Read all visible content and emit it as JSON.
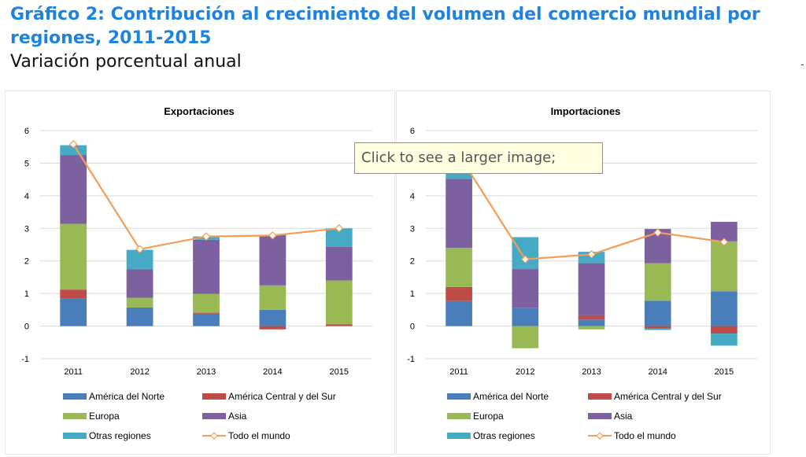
{
  "header": {
    "title": "Gráfico 2: Contribución al crecimiento del volumen del comercio mundial por regiones, 2011-2015",
    "subtitle": "Variación porcentual anual"
  },
  "tooltip": {
    "text": "Click to see a larger image;"
  },
  "colors": {
    "America del Norte": "#4a7ebb",
    "America Central y del Sur": "#be4b48",
    "Europa": "#98b954",
    "Asia": "#7d60a0",
    "Otras regiones": "#46aac5",
    "Todo el mundo": "#f59d56",
    "grid": "#d9d9d9"
  },
  "chart_data": [
    {
      "type": "bar",
      "title": "Exportaciones",
      "categories": [
        "2011",
        "2012",
        "2013",
        "2014",
        "2015"
      ],
      "ylim": [
        -1,
        6
      ],
      "yticks": [
        "-1",
        "0",
        "1",
        "2",
        "3",
        "4",
        "5",
        "6"
      ],
      "grid": true,
      "legend_position": "bottom",
      "series": [
        {
          "name": "América del Norte",
          "values": [
            0.85,
            0.57,
            0.38,
            0.5,
            0.0
          ]
        },
        {
          "name": "América Central y del Sur",
          "values": [
            0.27,
            0.0,
            0.03,
            -0.1,
            0.05
          ]
        },
        {
          "name": "Europa",
          "values": [
            2.02,
            0.3,
            0.58,
            0.75,
            1.35
          ]
        },
        {
          "name": "Asia",
          "values": [
            2.11,
            0.87,
            1.66,
            1.55,
            1.03
          ]
        },
        {
          "name": "Otras regiones",
          "values": [
            0.3,
            0.6,
            0.1,
            0.0,
            0.57
          ]
        },
        {
          "name": "Todo el mundo",
          "type": "line",
          "values": [
            5.58,
            2.36,
            2.75,
            2.78,
            3.0
          ]
        }
      ]
    },
    {
      "type": "bar",
      "title": "Importaciones",
      "categories": [
        "2011",
        "2012",
        "2013",
        "2014",
        "2015"
      ],
      "ylim": [
        -1,
        6
      ],
      "yticks": [
        "-1",
        "0",
        "1",
        "2",
        "3",
        "4",
        "5",
        "6"
      ],
      "grid": true,
      "legend_position": "bottom",
      "series": [
        {
          "name": "América del Norte",
          "values": [
            0.77,
            0.55,
            0.2,
            0.78,
            1.07
          ]
        },
        {
          "name": "América Central y del Sur",
          "values": [
            0.43,
            0.0,
            0.13,
            -0.07,
            -0.23
          ]
        },
        {
          "name": "Europa",
          "values": [
            1.2,
            -0.68,
            -0.1,
            1.15,
            1.53
          ]
        },
        {
          "name": "Asia",
          "values": [
            2.12,
            1.2,
            1.6,
            1.05,
            0.6
          ]
        },
        {
          "name": "Otras regiones",
          "values": [
            0.38,
            0.98,
            0.35,
            -0.05,
            -0.37
          ]
        },
        {
          "name": "Todo el mundo",
          "type": "line",
          "values": [
            5.25,
            2.05,
            2.2,
            2.87,
            2.58
          ]
        }
      ]
    }
  ]
}
